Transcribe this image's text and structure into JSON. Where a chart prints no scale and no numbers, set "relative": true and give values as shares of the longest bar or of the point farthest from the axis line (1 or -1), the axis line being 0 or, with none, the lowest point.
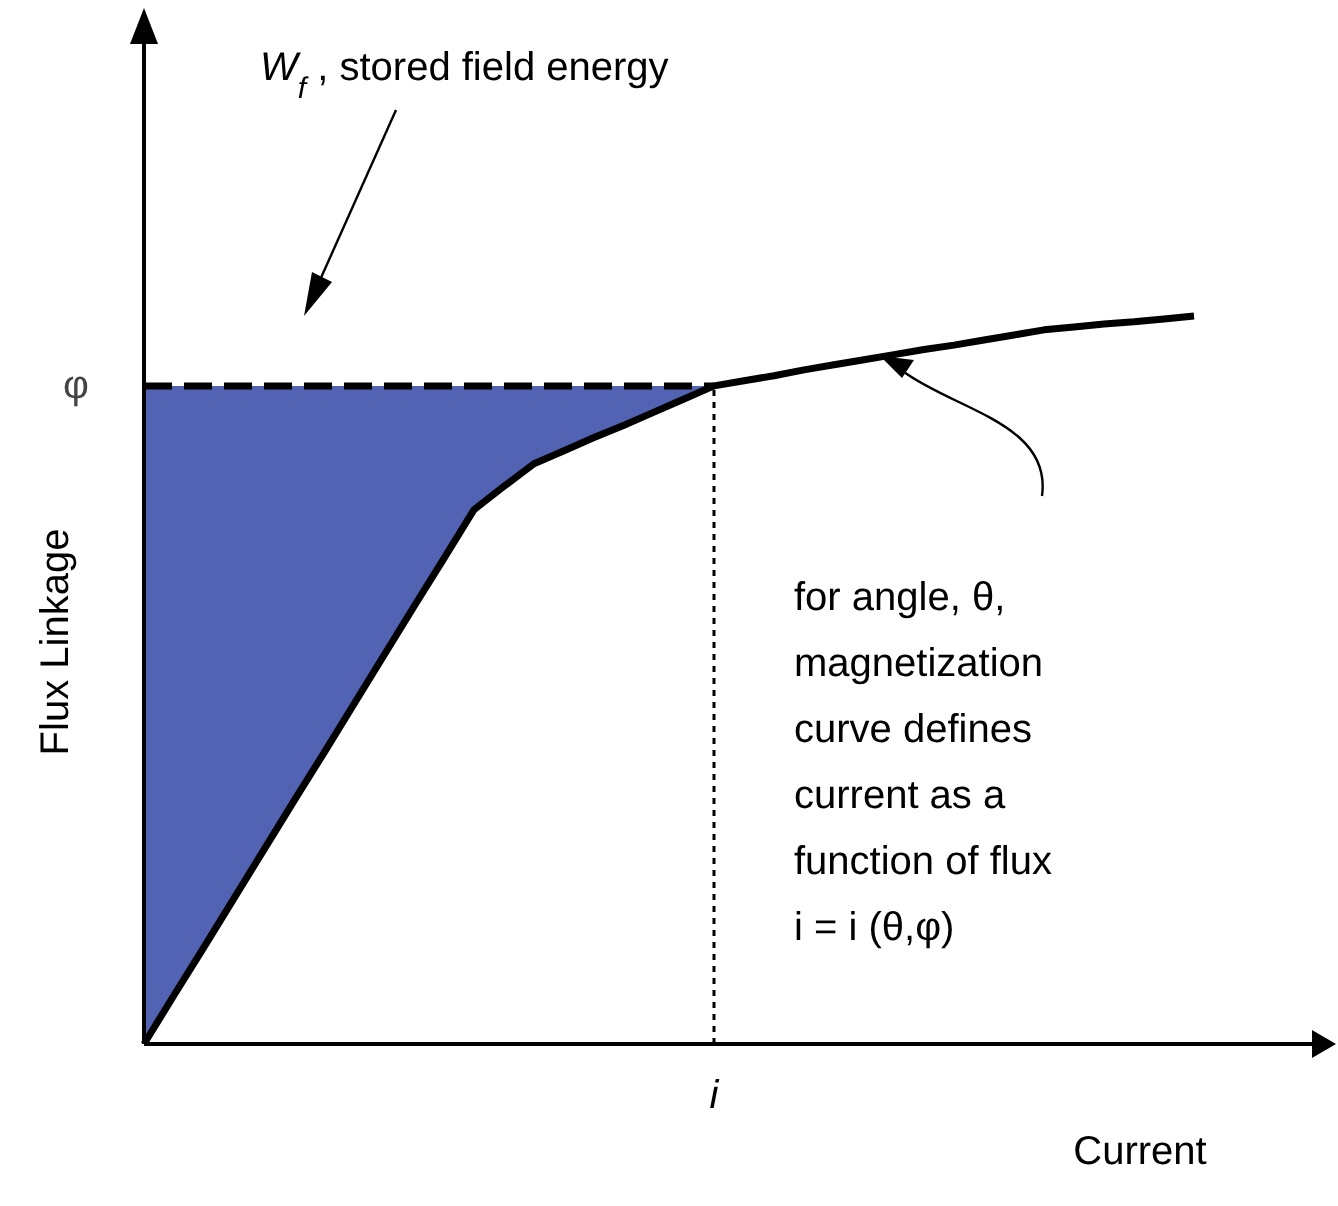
{
  "chart_data": {
    "type": "line",
    "relative": true,
    "xlabel": "Current",
    "ylabel": "Flux Linkage",
    "categories": [
      null,
      null,
      null,
      null,
      null,
      null,
      null,
      null,
      null,
      null,
      null,
      null,
      null,
      null,
      null,
      null,
      null,
      null,
      null,
      null,
      null,
      null,
      null,
      null,
      null,
      null,
      null,
      null,
      null,
      null,
      null,
      null,
      null,
      null,
      null,
      null
    ],
    "series": [
      {
        "color": "#000000",
        "values": [
          0,
          0.067,
          0.133,
          0.2,
          0.267,
          0.334,
          0.4,
          0.467,
          0.534,
          0.601,
          0.667,
          0.734,
          0.766,
          0.797,
          0.815,
          0.833,
          0.85,
          0.868,
          0.886,
          0.904,
          0.911,
          0.918,
          0.926,
          0.933,
          0.94,
          0.947,
          0.954,
          0.96,
          0.967,
          0.974,
          0.981,
          0.985,
          0.989,
          0.992,
          0.996,
          1
        ]
      }
    ],
    "ref_lines": [
      {
        "axis": "y",
        "value": 0.904,
        "label": "φ",
        "line_style": "dashed"
      }
    ],
    "annotations": [
      "W$_{f}$ , stored field energy",
      "for angle, θ,\nmagnetization\ncurve defines\ncurrent as a\nfunction of flux\ni = i (θ,φ)",
      {
        "text": "i",
        "y": 0.904
      }
    ]
  }
}
